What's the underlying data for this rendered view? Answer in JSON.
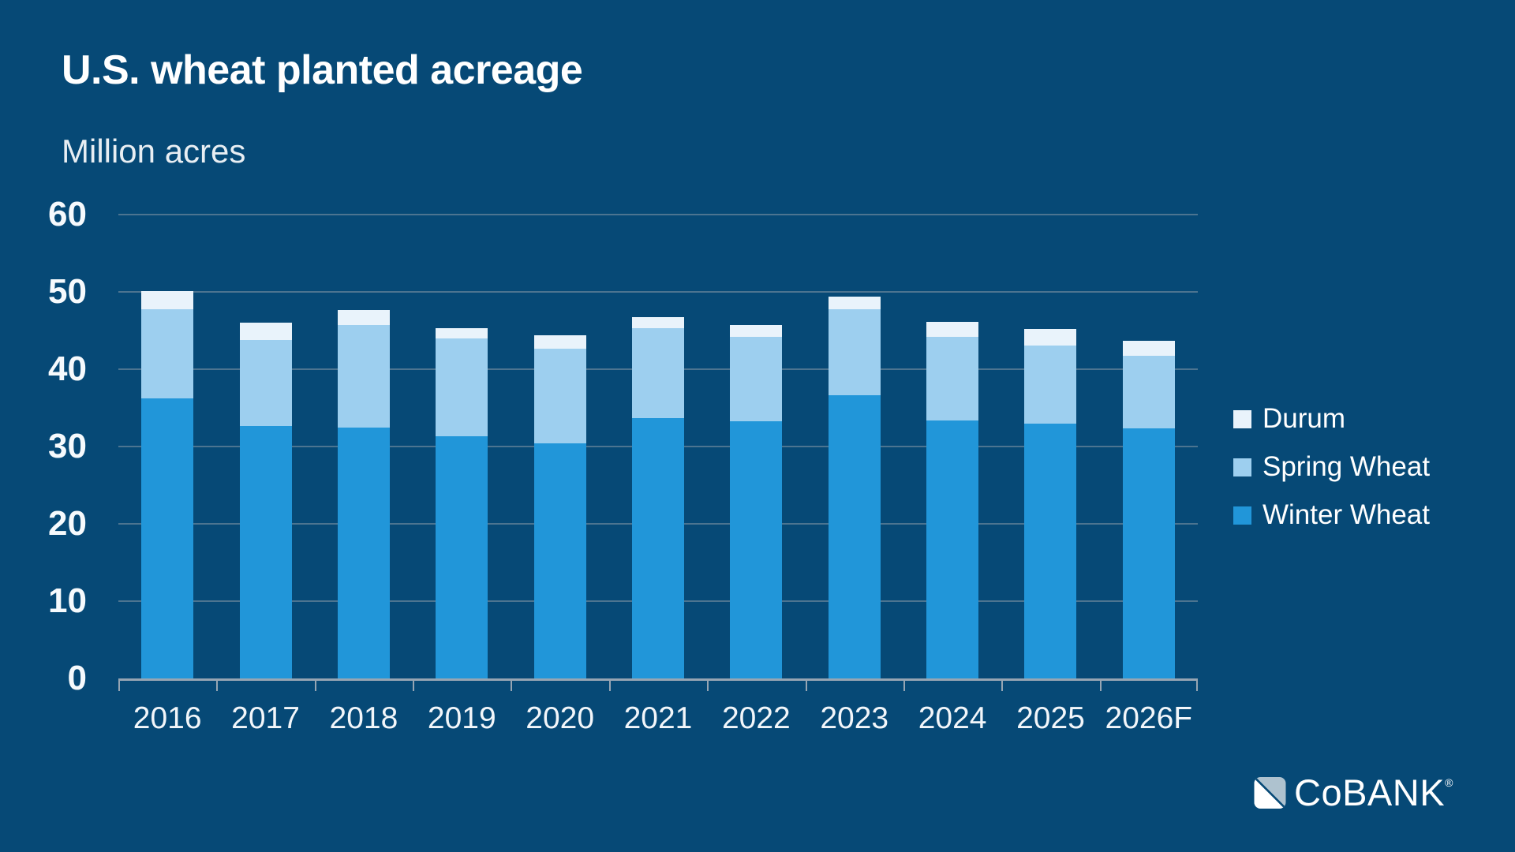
{
  "header": {
    "title": "U.S. wheat planted acreage",
    "subtitle": "Million acres"
  },
  "chart_data": {
    "type": "bar",
    "stacked": true,
    "title": "U.S. wheat planted acreage",
    "ylabel": "Million acres",
    "categories": [
      "2016",
      "2017",
      "2018",
      "2019",
      "2020",
      "2021",
      "2022",
      "2023",
      "2024",
      "2025",
      "2026F"
    ],
    "series": [
      {
        "name": "Winter Wheat",
        "color": "#2196D9",
        "values": [
          36.2,
          32.7,
          32.5,
          31.3,
          30.4,
          33.7,
          33.3,
          36.6,
          33.4,
          33.0,
          32.3
        ]
      },
      {
        "name": "Spring Wheat",
        "color": "#9DCFEF",
        "values": [
          11.6,
          11.1,
          13.2,
          12.7,
          12.3,
          11.6,
          10.9,
          11.2,
          10.8,
          10.1,
          9.4
        ]
      },
      {
        "name": "Durum",
        "color": "#E9F3FB",
        "values": [
          2.3,
          2.2,
          2.0,
          1.3,
          1.7,
          1.4,
          1.5,
          1.6,
          1.9,
          2.1,
          2.0
        ]
      }
    ],
    "totals": [
      50.1,
      46.0,
      47.7,
      45.3,
      44.4,
      46.7,
      45.7,
      49.4,
      46.1,
      45.2,
      43.7
    ],
    "ylim": [
      0,
      60
    ],
    "yticks": [
      0,
      10,
      20,
      30,
      40,
      50,
      60
    ],
    "grid": true,
    "legend_position": "right",
    "legend_order": [
      "Durum",
      "Spring Wheat",
      "Winter Wheat"
    ]
  },
  "legend": {
    "items": [
      {
        "label": "Durum",
        "color": "#E9F3FB"
      },
      {
        "label": "Spring Wheat",
        "color": "#9DCFEF"
      },
      {
        "label": "Winter Wheat",
        "color": "#2196D9"
      }
    ]
  },
  "logo": {
    "text": "CoBANK",
    "registered": "®"
  },
  "colors": {
    "background": "#064976",
    "gridline": "#4C7490",
    "axis": "#96A5B3",
    "title_text": "#FFFFFF"
  }
}
